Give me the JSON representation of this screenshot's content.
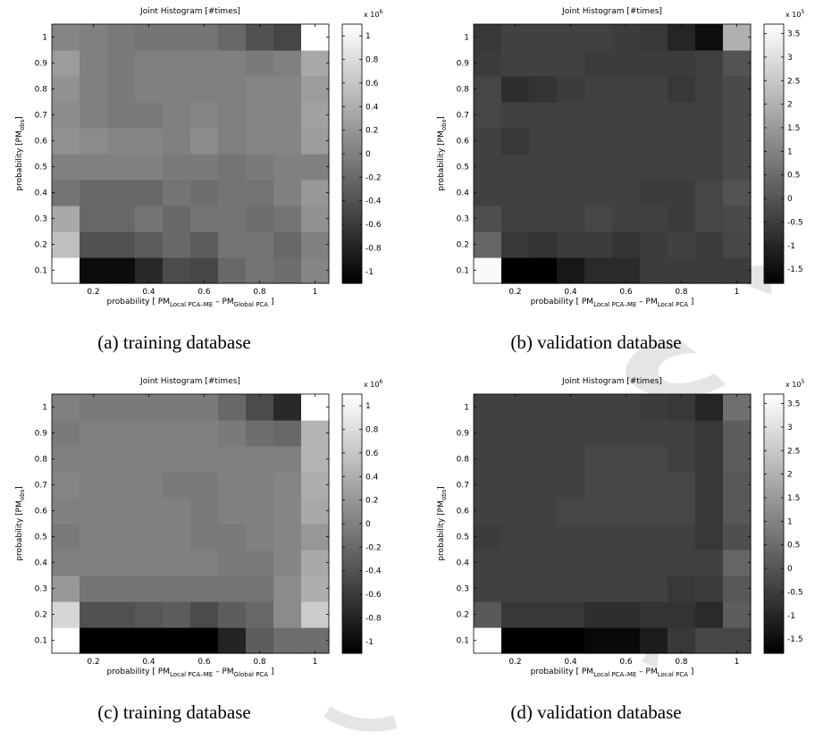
{
  "chart_data": [
    {
      "id": "a",
      "type": "heatmap",
      "title": "Joint Histogram [#times]",
      "xlabel_parts": [
        "probability [ PM",
        "Local PCA–ME",
        " – PM",
        "Global PCA",
        " ]"
      ],
      "ylabel_parts": [
        "probability [PM",
        "obs",
        "]"
      ],
      "x_ticks": [
        "0.2",
        "0.4",
        "0.6",
        "0.8",
        "1"
      ],
      "y_ticks": [
        "0.1",
        "0.2",
        "0.3",
        "0.4",
        "0.5",
        "0.6",
        "0.7",
        "0.8",
        "0.9",
        "1"
      ],
      "x_centers": [
        0.1,
        0.2,
        0.3,
        0.4,
        0.5,
        0.6,
        0.7,
        0.8,
        0.9,
        1.0
      ],
      "y_centers": [
        0.1,
        0.2,
        0.3,
        0.4,
        0.5,
        0.6,
        0.7,
        0.8,
        0.9,
        1.0
      ],
      "values": [
        [
          1.1,
          -1.0,
          -1.0,
          -0.75,
          -0.45,
          -0.5,
          -0.2,
          -0.1,
          -0.15,
          0.05
        ],
        [
          0.55,
          -0.4,
          -0.4,
          -0.3,
          -0.2,
          -0.3,
          -0.1,
          -0.1,
          -0.2,
          0.0
        ],
        [
          0.35,
          -0.2,
          -0.2,
          -0.1,
          -0.2,
          -0.1,
          -0.1,
          -0.15,
          -0.1,
          0.15
        ],
        [
          -0.1,
          -0.2,
          -0.2,
          -0.2,
          -0.1,
          -0.15,
          -0.1,
          -0.1,
          0.0,
          0.2
        ],
        [
          0.0,
          0.0,
          0.0,
          0.0,
          -0.05,
          -0.05,
          -0.1,
          -0.05,
          0.0,
          0.0
        ],
        [
          0.15,
          0.1,
          0.05,
          0.05,
          0.0,
          0.1,
          0.0,
          0.05,
          0.05,
          0.25
        ],
        [
          0.1,
          0.0,
          -0.05,
          -0.05,
          0.0,
          0.05,
          0.0,
          0.05,
          0.05,
          0.3
        ],
        [
          0.15,
          0.0,
          -0.05,
          0.0,
          0.0,
          0.0,
          0.0,
          0.05,
          0.05,
          0.25
        ],
        [
          0.25,
          0.0,
          -0.05,
          0.0,
          0.0,
          0.0,
          0.0,
          -0.05,
          0.0,
          0.35
        ],
        [
          0.05,
          0.0,
          -0.05,
          -0.1,
          -0.1,
          -0.1,
          -0.2,
          -0.4,
          -0.5,
          1.1
        ]
      ],
      "clim": [
        -1.1,
        1.1
      ],
      "colorbar_ticks": [
        "-1",
        "-0.8",
        "-0.6",
        "-0.4",
        "-0.2",
        "0",
        "0.2",
        "0.4",
        "0.6",
        "0.8",
        "1"
      ],
      "colorbar_values": [
        -1,
        -0.8,
        -0.6,
        -0.4,
        -0.2,
        0,
        0.2,
        0.4,
        0.6,
        0.8,
        1
      ],
      "colorbar_exponent_base": "x 10",
      "colorbar_exponent": "6",
      "caption": "(a)  training database",
      "colormap": "gray"
    },
    {
      "id": "b",
      "type": "heatmap",
      "title": "Joint Histogram [#times]",
      "xlabel_parts": [
        "probability [ PM",
        "Local PCA–ME",
        " – PM",
        "Local PCA",
        " ]"
      ],
      "ylabel_parts": [
        "probability [PM",
        "obs",
        "]"
      ],
      "x_ticks": [
        "0.2",
        "0.4",
        "0.6",
        "0.8",
        "1"
      ],
      "y_ticks": [
        "0.1",
        "0.2",
        "0.3",
        "0.4",
        "0.5",
        "0.6",
        "0.7",
        "0.8",
        "0.9",
        "1"
      ],
      "x_centers": [
        0.1,
        0.2,
        0.3,
        0.4,
        0.5,
        0.6,
        0.7,
        0.8,
        0.9,
        1.0
      ],
      "y_centers": [
        0.1,
        0.2,
        0.3,
        0.4,
        0.5,
        0.6,
        0.7,
        0.8,
        0.9,
        1.0
      ],
      "values": [
        [
          3.6,
          -1.8,
          -1.8,
          -1.3,
          -0.9,
          -0.9,
          -0.5,
          -0.5,
          -0.5,
          -0.5
        ],
        [
          0.4,
          -0.6,
          -0.7,
          -0.5,
          -0.5,
          -0.7,
          -0.5,
          -0.4,
          -0.5,
          -0.3
        ],
        [
          -0.1,
          -0.4,
          -0.4,
          -0.4,
          -0.3,
          -0.4,
          -0.4,
          -0.5,
          -0.3,
          -0.2
        ],
        [
          -0.4,
          -0.4,
          -0.4,
          -0.4,
          -0.4,
          -0.4,
          -0.5,
          -0.5,
          -0.3,
          0.0
        ],
        [
          -0.4,
          -0.4,
          -0.4,
          -0.4,
          -0.4,
          -0.4,
          -0.4,
          -0.4,
          -0.4,
          -0.2
        ],
        [
          -0.4,
          -0.6,
          -0.4,
          -0.4,
          -0.4,
          -0.4,
          -0.4,
          -0.4,
          -0.4,
          -0.2
        ],
        [
          -0.3,
          -0.4,
          -0.4,
          -0.4,
          -0.4,
          -0.4,
          -0.4,
          -0.4,
          -0.4,
          -0.2
        ],
        [
          -0.3,
          -0.8,
          -0.7,
          -0.5,
          -0.4,
          -0.4,
          -0.4,
          -0.6,
          -0.4,
          -0.2
        ],
        [
          -0.5,
          -0.4,
          -0.4,
          -0.4,
          -0.5,
          -0.5,
          -0.5,
          -0.5,
          -0.4,
          0.0
        ],
        [
          -0.6,
          -0.4,
          -0.4,
          -0.4,
          -0.4,
          -0.5,
          -0.6,
          -1.0,
          -1.5,
          2.0
        ]
      ],
      "clim": [
        -1.8,
        3.7
      ],
      "colorbar_ticks": [
        "-1.5",
        "-1",
        "-0.5",
        "0",
        "0.5",
        "1",
        "1.5",
        "2",
        "2.5",
        "3",
        "3.5"
      ],
      "colorbar_values": [
        -1.5,
        -1,
        -0.5,
        0,
        0.5,
        1,
        1.5,
        2,
        2.5,
        3,
        3.5
      ],
      "colorbar_exponent_base": "x 10",
      "colorbar_exponent": "5",
      "caption": "(b)  validation database",
      "colormap": "gray"
    },
    {
      "id": "c",
      "type": "heatmap",
      "title": "Joint Histogram [#times]",
      "xlabel_parts": [
        "probability [ PM",
        "Local PCA–ME",
        " – PM",
        "Global PCA",
        " ]"
      ],
      "ylabel_parts": [
        "probability [PM",
        "obs",
        "]"
      ],
      "x_ticks": [
        "0.2",
        "0.4",
        "0.6",
        "0.8",
        "1"
      ],
      "y_ticks": [
        "0.1",
        "0.2",
        "0.3",
        "0.4",
        "0.5",
        "0.6",
        "0.7",
        "0.8",
        "0.9",
        "1"
      ],
      "x_centers": [
        0.1,
        0.2,
        0.3,
        0.4,
        0.5,
        0.6,
        0.7,
        0.8,
        0.9,
        1.0
      ],
      "y_centers": [
        0.1,
        0.2,
        0.3,
        0.4,
        0.5,
        0.6,
        0.7,
        0.8,
        0.9,
        1.0
      ],
      "values": [
        [
          1.1,
          -1.1,
          -1.1,
          -1.1,
          -1.1,
          -1.1,
          -0.8,
          -0.3,
          -0.15,
          -0.15
        ],
        [
          0.75,
          -0.4,
          -0.4,
          -0.35,
          -0.3,
          -0.45,
          -0.3,
          -0.2,
          0.1,
          0.65
        ],
        [
          0.2,
          -0.1,
          -0.1,
          -0.1,
          -0.1,
          -0.1,
          -0.1,
          -0.1,
          0.1,
          0.4
        ],
        [
          0.0,
          0.0,
          0.0,
          0.0,
          0.0,
          0.0,
          -0.05,
          -0.05,
          0.05,
          0.35
        ],
        [
          -0.05,
          0.0,
          0.0,
          0.0,
          0.0,
          -0.05,
          -0.05,
          0.0,
          0.05,
          0.2
        ],
        [
          0.0,
          0.0,
          0.0,
          0.0,
          0.0,
          -0.05,
          0.0,
          0.0,
          0.05,
          0.35
        ],
        [
          0.05,
          0.0,
          0.0,
          0.0,
          -0.05,
          -0.05,
          0.0,
          0.0,
          0.05,
          0.4
        ],
        [
          0.0,
          0.0,
          0.0,
          0.0,
          0.0,
          0.0,
          0.0,
          0.0,
          0.0,
          0.45
        ],
        [
          -0.05,
          0.0,
          0.0,
          0.0,
          0.0,
          0.0,
          -0.05,
          -0.15,
          -0.2,
          0.45
        ],
        [
          0.0,
          -0.05,
          -0.05,
          -0.05,
          -0.05,
          -0.05,
          -0.2,
          -0.45,
          -0.75,
          1.1
        ]
      ],
      "clim": [
        -1.1,
        1.1
      ],
      "colorbar_ticks": [
        "-1",
        "-0.8",
        "-0.6",
        "-0.4",
        "-0.2",
        "0",
        "0.2",
        "0.4",
        "0.6",
        "0.8",
        "1"
      ],
      "colorbar_values": [
        -1,
        -0.8,
        -0.6,
        -0.4,
        -0.2,
        0,
        0.2,
        0.4,
        0.6,
        0.8,
        1
      ],
      "colorbar_exponent_base": "x 10",
      "colorbar_exponent": "6",
      "caption": "(c)  training database",
      "colormap": "gray"
    },
    {
      "id": "d",
      "type": "heatmap",
      "title": "Joint Histogram [#times]",
      "xlabel_parts": [
        "probability [ PM",
        "Local PCA–ME",
        " – PM",
        "Local PCA",
        " ]"
      ],
      "ylabel_parts": [
        "probability [PM",
        "obs",
        "]"
      ],
      "x_ticks": [
        "0.2",
        "0.4",
        "0.6",
        "0.8",
        "1"
      ],
      "y_ticks": [
        "0.1",
        "0.2",
        "0.3",
        "0.4",
        "0.5",
        "0.6",
        "0.7",
        "0.8",
        "0.9",
        "1"
      ],
      "x_centers": [
        0.1,
        0.2,
        0.3,
        0.4,
        0.5,
        0.6,
        0.7,
        0.8,
        0.9,
        1.0
      ],
      "y_centers": [
        0.1,
        0.2,
        0.3,
        0.4,
        0.5,
        0.6,
        0.7,
        0.8,
        0.9,
        1.0
      ],
      "values": [
        [
          3.7,
          -1.8,
          -1.8,
          -1.8,
          -1.6,
          -1.6,
          -1.2,
          -0.6,
          -0.3,
          -0.3
        ],
        [
          0.1,
          -0.6,
          -0.6,
          -0.6,
          -0.8,
          -0.8,
          -0.7,
          -0.7,
          -0.9,
          0.2
        ],
        [
          -0.4,
          -0.4,
          -0.4,
          -0.4,
          -0.4,
          -0.4,
          -0.4,
          -0.6,
          -0.5,
          0.1
        ],
        [
          -0.4,
          -0.4,
          -0.4,
          -0.4,
          -0.4,
          -0.4,
          -0.4,
          -0.4,
          -0.4,
          0.4
        ],
        [
          -0.5,
          -0.4,
          -0.4,
          -0.4,
          -0.4,
          -0.4,
          -0.4,
          -0.4,
          -0.6,
          -0.1
        ],
        [
          -0.4,
          -0.4,
          -0.4,
          -0.3,
          -0.3,
          -0.3,
          -0.3,
          -0.3,
          -0.6,
          0.1
        ],
        [
          -0.4,
          -0.4,
          -0.4,
          -0.4,
          -0.3,
          -0.3,
          -0.3,
          -0.3,
          -0.6,
          0.1
        ],
        [
          -0.4,
          -0.4,
          -0.4,
          -0.4,
          -0.3,
          -0.3,
          -0.3,
          -0.4,
          -0.6,
          0.2
        ],
        [
          -0.4,
          -0.4,
          -0.4,
          -0.4,
          -0.4,
          -0.4,
          -0.4,
          -0.4,
          -0.6,
          0.2
        ],
        [
          -0.4,
          -0.4,
          -0.4,
          -0.4,
          -0.4,
          -0.4,
          -0.5,
          -0.6,
          -1.0,
          0.6
        ]
      ],
      "clim": [
        -1.8,
        3.7
      ],
      "colorbar_ticks": [
        "-1.5",
        "-1",
        "-0.5",
        "0",
        "0.5",
        "1",
        "1.5",
        "2",
        "2.5",
        "3",
        "3.5"
      ],
      "colorbar_values": [
        -1.5,
        -1,
        -0.5,
        0,
        0.5,
        1,
        1.5,
        2,
        2.5,
        3,
        3.5
      ],
      "colorbar_exponent_base": "x 10",
      "colorbar_exponent": "5",
      "caption": "(d)  validation database",
      "colormap": "gray"
    }
  ]
}
